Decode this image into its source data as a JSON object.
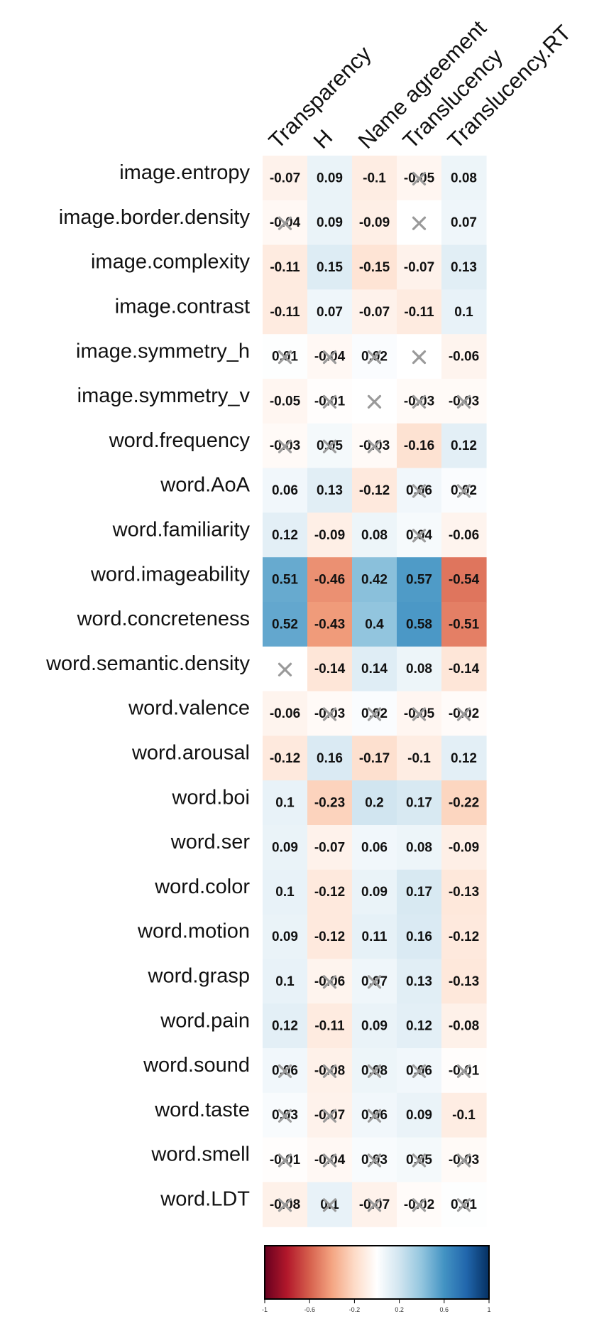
{
  "chart_data": {
    "type": "heatmap",
    "title": "",
    "columns": [
      "Transparency",
      "H",
      "Name agreement",
      "Translucency",
      "Translucency.RT"
    ],
    "rows": [
      "image.entropy",
      "image.border.density",
      "image.complexity",
      "image.contrast",
      "image.symmetry_h",
      "image.symmetry_v",
      "word.frequency",
      "word.AoA",
      "word.familiarity",
      "word.imageability",
      "word.concreteness",
      "word.semantic.density",
      "word.valence",
      "word.arousal",
      "word.boi",
      "word.ser",
      "word.color",
      "word.motion",
      "word.grasp",
      "word.pain",
      "word.sound",
      "word.taste",
      "word.smell",
      "word.LDT"
    ],
    "values": [
      [
        -0.07,
        0.09,
        -0.1,
        -0.05,
        0.08
      ],
      [
        -0.04,
        0.09,
        -0.09,
        0,
        0.07
      ],
      [
        -0.11,
        0.15,
        -0.15,
        -0.07,
        0.13
      ],
      [
        -0.11,
        0.07,
        -0.07,
        -0.11,
        0.1
      ],
      [
        0.01,
        -0.04,
        0.02,
        0,
        -0.06
      ],
      [
        -0.05,
        -0.01,
        0,
        -0.03,
        -0.03
      ],
      [
        -0.03,
        0.05,
        -0.03,
        -0.16,
        0.12
      ],
      [
        0.06,
        0.13,
        -0.12,
        0.06,
        0.02
      ],
      [
        0.12,
        -0.09,
        0.08,
        0.04,
        -0.06
      ],
      [
        0.51,
        -0.46,
        0.42,
        0.57,
        -0.54
      ],
      [
        0.52,
        -0.43,
        0.4,
        0.58,
        -0.51
      ],
      [
        0,
        -0.14,
        0.14,
        0.08,
        -0.14
      ],
      [
        -0.06,
        -0.03,
        0.02,
        -0.05,
        -0.02
      ],
      [
        -0.12,
        0.16,
        -0.17,
        -0.1,
        0.12
      ],
      [
        0.1,
        -0.23,
        0.2,
        0.17,
        -0.22
      ],
      [
        0.09,
        -0.07,
        0.06,
        0.08,
        -0.09
      ],
      [
        0.1,
        -0.12,
        0.09,
        0.17,
        -0.13
      ],
      [
        0.09,
        -0.12,
        0.11,
        0.16,
        -0.12
      ],
      [
        0.1,
        -0.06,
        0.07,
        0.13,
        -0.13
      ],
      [
        0.12,
        -0.11,
        0.09,
        0.12,
        -0.08
      ],
      [
        0.06,
        -0.08,
        0.08,
        0.06,
        -0.01
      ],
      [
        0.03,
        -0.07,
        0.06,
        0.09,
        -0.1
      ],
      [
        -0.01,
        -0.04,
        0.03,
        0.05,
        -0.03
      ],
      [
        -0.08,
        0.1,
        -0.07,
        -0.02,
        0.01
      ]
    ],
    "labels": [
      [
        "-0.07",
        "0.09",
        "-0.1",
        "-0.05",
        "0.08"
      ],
      [
        "-0.04",
        "0.09",
        "-0.09",
        "",
        "0.07"
      ],
      [
        "-0.11",
        "0.15",
        "-0.15",
        "-0.07",
        "0.13"
      ],
      [
        "-0.11",
        "0.07",
        "-0.07",
        "-0.11",
        "0.1"
      ],
      [
        "0.01",
        "-0.04",
        "0.02",
        "",
        "-0.06"
      ],
      [
        "-0.05",
        "-0.01",
        "",
        "-0.03",
        "-0.03"
      ],
      [
        "-0.03",
        "0.05",
        "-0.03",
        "-0.16",
        "0.12"
      ],
      [
        "0.06",
        "0.13",
        "-0.12",
        "0.06",
        "0.02"
      ],
      [
        "0.12",
        "-0.09",
        "0.08",
        "0.04",
        "-0.06"
      ],
      [
        "0.51",
        "-0.46",
        "0.42",
        "0.57",
        "-0.54"
      ],
      [
        "0.52",
        "-0.43",
        "0.4",
        "0.58",
        "-0.51"
      ],
      [
        "",
        "-0.14",
        "0.14",
        "0.08",
        "-0.14"
      ],
      [
        "-0.06",
        "-0.03",
        "0.02",
        "-0.05",
        "-0.02"
      ],
      [
        "-0.12",
        "0.16",
        "-0.17",
        "-0.1",
        "0.12"
      ],
      [
        "0.1",
        "-0.23",
        "0.2",
        "0.17",
        "-0.22"
      ],
      [
        "0.09",
        "-0.07",
        "0.06",
        "0.08",
        "-0.09"
      ],
      [
        "0.1",
        "-0.12",
        "0.09",
        "0.17",
        "-0.13"
      ],
      [
        "0.09",
        "-0.12",
        "0.11",
        "0.16",
        "-0.12"
      ],
      [
        "0.1",
        "-0.06",
        "0.07",
        "0.13",
        "-0.13"
      ],
      [
        "0.12",
        "-0.11",
        "0.09",
        "0.12",
        "-0.08"
      ],
      [
        "0.06",
        "-0.08",
        "0.08",
        "0.06",
        "-0.01"
      ],
      [
        "0.03",
        "-0.07",
        "0.06",
        "0.09",
        "-0.1"
      ],
      [
        "-0.01",
        "-0.04",
        "0.03",
        "0.05",
        "-0.03"
      ],
      [
        "-0.08",
        "0.1",
        "-0.07",
        "-0.02",
        "0.01"
      ]
    ],
    "crossed": [
      [
        false,
        false,
        false,
        true,
        false
      ],
      [
        true,
        false,
        false,
        true,
        false
      ],
      [
        false,
        false,
        false,
        false,
        false
      ],
      [
        false,
        false,
        false,
        false,
        false
      ],
      [
        true,
        true,
        true,
        true,
        false
      ],
      [
        false,
        true,
        true,
        true,
        true
      ],
      [
        true,
        true,
        true,
        false,
        false
      ],
      [
        false,
        false,
        false,
        true,
        true
      ],
      [
        false,
        false,
        false,
        true,
        false
      ],
      [
        false,
        false,
        false,
        false,
        false
      ],
      [
        false,
        false,
        false,
        false,
        false
      ],
      [
        true,
        false,
        false,
        false,
        false
      ],
      [
        false,
        true,
        true,
        true,
        true
      ],
      [
        false,
        false,
        false,
        false,
        false
      ],
      [
        false,
        false,
        false,
        false,
        false
      ],
      [
        false,
        false,
        false,
        false,
        false
      ],
      [
        false,
        false,
        false,
        false,
        false
      ],
      [
        false,
        false,
        false,
        false,
        false
      ],
      [
        false,
        true,
        true,
        false,
        false
      ],
      [
        false,
        false,
        false,
        false,
        false
      ],
      [
        true,
        true,
        true,
        true,
        true
      ],
      [
        true,
        true,
        true,
        false,
        false
      ],
      [
        true,
        true,
        true,
        true,
        true
      ],
      [
        true,
        true,
        true,
        true,
        true
      ]
    ],
    "colorbar": {
      "range": [
        -1,
        1
      ],
      "ticks": [
        "-1",
        "-0.6",
        "-0.2",
        "0.2",
        "0.6",
        "1"
      ],
      "colors": {
        "negative_strong": "#67001f",
        "negative": "#d6604d",
        "neutral": "#ffffff",
        "positive": "#4393c3",
        "positive_strong": "#053061"
      }
    }
  }
}
